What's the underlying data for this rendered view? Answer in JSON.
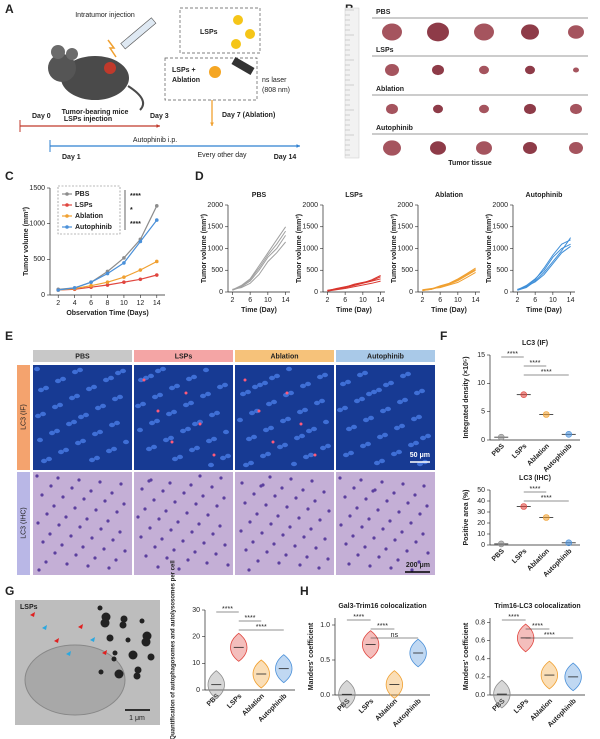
{
  "panel_labels": [
    "A",
    "B",
    "C",
    "D",
    "E",
    "F",
    "G",
    "H"
  ],
  "schematic": {
    "injection": "Intratumor injection",
    "lsps": "LSPs",
    "lsps_ablation": [
      "LSPs +",
      "Ablation"
    ],
    "laser": [
      "ns laser",
      "(808 nm)"
    ],
    "mice": "Tumor-bearing mice",
    "day0": "Day 0",
    "lsps_injection": "LSPs injection",
    "day3": "Day 3",
    "day7": "Day 7 (Ablation)",
    "day1": "Day 1",
    "autophinib": "Autophinib i.p.",
    "every_other_day": "Every other day",
    "day14": "Day 14"
  },
  "tissue": {
    "groups": [
      "PBS",
      "LSPs",
      "Ablation",
      "Autophinib"
    ],
    "caption": "Tumor tissue"
  },
  "staining": {
    "groups": [
      "PBS",
      "LSPs",
      "Ablation",
      "Autophinib"
    ],
    "rows": [
      "LC3 (IF)",
      "LC3 (IHC)"
    ],
    "scales": [
      "50 μm",
      "200 μm"
    ]
  },
  "em": {
    "label": "LSPs",
    "scale": "1 μm"
  },
  "chart_data": [
    {
      "type": "line",
      "xlabel": "Observation Time (Days)",
      "ylabel": "Tumor volume (mm³)",
      "x": [
        2,
        4,
        6,
        8,
        10,
        12,
        14
      ],
      "xlim": [
        1,
        15
      ],
      "xticks": [
        2,
        4,
        6,
        8,
        10,
        12,
        14
      ],
      "ylim": [
        0,
        1500
      ],
      "yticks": [
        0,
        500,
        1000,
        1500
      ],
      "series": [
        {
          "name": "PBS",
          "color": "#8c8c8c",
          "values": [
            80,
            100,
            180,
            330,
            520,
            780,
            1250
          ]
        },
        {
          "name": "LSPs",
          "color": "#e0463f",
          "values": [
            70,
            80,
            110,
            140,
            180,
            220,
            280
          ]
        },
        {
          "name": "Ablation",
          "color": "#f0a030",
          "values": [
            70,
            90,
            130,
            180,
            250,
            350,
            470
          ]
        },
        {
          "name": "Autophinib",
          "color": "#4a90d9",
          "values": [
            70,
            100,
            180,
            300,
            450,
            750,
            1050
          ]
        }
      ],
      "annotations": [
        "****",
        "*",
        "****"
      ]
    },
    {
      "type": "multiline",
      "title": "PBS",
      "color": "#a0a0a0",
      "xlabel": "Time (Day)",
      "ylabel": "Tumor volume (mm³)",
      "x": [
        2,
        4,
        6,
        8,
        10,
        12,
        14
      ],
      "xlim": [
        1,
        15
      ],
      "xticks": [
        2,
        6,
        10,
        14
      ],
      "ylim": [
        0,
        2000
      ],
      "yticks": [
        0,
        500,
        1000,
        1500,
        2000
      ],
      "series": [
        {
          "values": [
            50,
            150,
            300,
            600,
            900,
            1200,
            1500
          ]
        },
        {
          "values": [
            40,
            120,
            250,
            500,
            800,
            1000,
            1300
          ]
        },
        {
          "values": [
            60,
            100,
            200,
            400,
            700,
            900,
            1150
          ]
        },
        {
          "values": [
            50,
            130,
            280,
            550,
            850,
            1100,
            1400
          ]
        }
      ]
    },
    {
      "type": "multiline",
      "title": "LSPs",
      "color": "#d9362e",
      "xlabel": "Time (Day)",
      "ylabel": "Tumor volume (mm³)",
      "x": [
        2,
        4,
        6,
        8,
        10,
        12,
        14
      ],
      "xlim": [
        1,
        15
      ],
      "xticks": [
        2,
        6,
        10,
        14
      ],
      "ylim": [
        0,
        2000
      ],
      "yticks": [
        0,
        500,
        1000,
        1500,
        2000
      ],
      "series": [
        {
          "values": [
            30,
            60,
            100,
            150,
            200,
            250,
            300
          ]
        },
        {
          "values": [
            40,
            70,
            110,
            180,
            220,
            260,
            350
          ]
        },
        {
          "values": [
            20,
            50,
            80,
            120,
            160,
            200,
            250
          ]
        },
        {
          "values": [
            30,
            80,
            120,
            160,
            210,
            280,
            380
          ]
        }
      ]
    },
    {
      "type": "multiline",
      "title": "Ablation",
      "color": "#f0a030",
      "xlabel": "Time (Day)",
      "ylabel": "Tumor volume (mm³)",
      "x": [
        2,
        4,
        6,
        8,
        10,
        12,
        14
      ],
      "xlim": [
        1,
        15
      ],
      "xticks": [
        2,
        6,
        10,
        14
      ],
      "ylim": [
        0,
        2000
      ],
      "yticks": [
        0,
        500,
        1000,
        1500,
        2000
      ],
      "series": [
        {
          "values": [
            40,
            60,
            120,
            180,
            260,
            380,
            500
          ]
        },
        {
          "values": [
            30,
            70,
            140,
            200,
            300,
            420,
            550
          ]
        },
        {
          "values": [
            50,
            80,
            100,
            160,
            220,
            330,
            450
          ]
        },
        {
          "values": [
            40,
            60,
            130,
            190,
            280,
            400,
            520
          ]
        }
      ]
    },
    {
      "type": "multiline",
      "title": "Autophinib",
      "color": "#3f8fd8",
      "xlabel": "Time (Day)",
      "ylabel": "Tumor volume (mm³)",
      "x": [
        2,
        4,
        6,
        8,
        10,
        12,
        14
      ],
      "xlim": [
        1,
        15
      ],
      "xticks": [
        2,
        6,
        10,
        14
      ],
      "ylim": [
        0,
        2000
      ],
      "yticks": [
        0,
        500,
        1000,
        1500,
        2000
      ],
      "series": [
        {
          "values": [
            50,
            150,
            300,
            500,
            800,
            1000,
            1100
          ]
        },
        {
          "values": [
            40,
            100,
            250,
            450,
            700,
            950,
            1250
          ]
        },
        {
          "values": [
            60,
            120,
            280,
            550,
            850,
            1100,
            1200
          ]
        },
        {
          "values": [
            50,
            130,
            230,
            400,
            650,
            900,
            1050
          ]
        }
      ]
    },
    {
      "type": "dot",
      "title": "LC3 (IF)",
      "ylabel": "Integrated density (×10⁵)",
      "categories": [
        "PBS",
        "LSPs",
        "Ablation",
        "Autophinib"
      ],
      "values": [
        0.5,
        8,
        4.5,
        1
      ],
      "colors": [
        "#8c8c8c",
        "#e0463f",
        "#f0a030",
        "#4a90d9"
      ],
      "ylim": [
        0,
        15
      ],
      "yticks": [
        0,
        5,
        10,
        15
      ],
      "annotations": [
        "****",
        "****",
        "****"
      ]
    },
    {
      "type": "dot",
      "title": "LC3 (IHC)",
      "ylabel": "Positive area (%)",
      "categories": [
        "PBS",
        "LSPs",
        "Ablation",
        "Autophinib"
      ],
      "values": [
        1,
        35,
        25,
        2
      ],
      "colors": [
        "#8c8c8c",
        "#e0463f",
        "#f0a030",
        "#4a90d9"
      ],
      "ylim": [
        0,
        50
      ],
      "yticks": [
        0,
        10,
        20,
        30,
        40,
        50
      ],
      "annotations": [
        "****",
        "****"
      ]
    },
    {
      "type": "violin",
      "ylabel": "Quantification of autophagosomes and autolysosomes per cell",
      "categories": [
        "PBS",
        "LSPs",
        "Ablation",
        "Autophinib"
      ],
      "values": [
        2,
        16,
        6,
        8
      ],
      "colors": [
        "#8c8c8c",
        "#e0463f",
        "#f0a030",
        "#4a90d9"
      ],
      "ylim": [
        0,
        30
      ],
      "yticks": [
        0,
        10,
        20,
        30
      ],
      "annotations": [
        "****",
        "****",
        "****"
      ]
    },
    {
      "type": "violin",
      "title": "Gal3-Trim16 colocalization",
      "ylabel": "Manders' coefficient",
      "categories": [
        "PBS",
        "LSPs",
        "Ablation",
        "Autophinib"
      ],
      "values": [
        0.01,
        0.72,
        0.15,
        0.6
      ],
      "colors": [
        "#8c8c8c",
        "#e0463f",
        "#f0a030",
        "#4a90d9"
      ],
      "ylim": [
        0,
        1.1
      ],
      "yticks": [
        {
          "value": 0,
          "label": "0.0"
        },
        0.5,
        {
          "value": 1,
          "label": "1.0"
        }
      ],
      "annotations": [
        "****",
        "****",
        "ns"
      ]
    },
    {
      "type": "violin",
      "title": "Trim16-LC3 colocalization",
      "ylabel": "Manders' coefficient",
      "categories": [
        "PBS",
        "LSPs",
        "Ablation",
        "Autophinib"
      ],
      "values": [
        0.01,
        0.63,
        0.22,
        0.2
      ],
      "colors": [
        "#8c8c8c",
        "#e0463f",
        "#f0a030",
        "#4a90d9"
      ],
      "ylim": [
        0,
        0.85
      ],
      "yticks": [
        {
          "value": 0,
          "label": "0.0"
        },
        0.2,
        0.4,
        0.6,
        0.8
      ],
      "annotations": [
        "****",
        "****",
        "****"
      ]
    }
  ]
}
